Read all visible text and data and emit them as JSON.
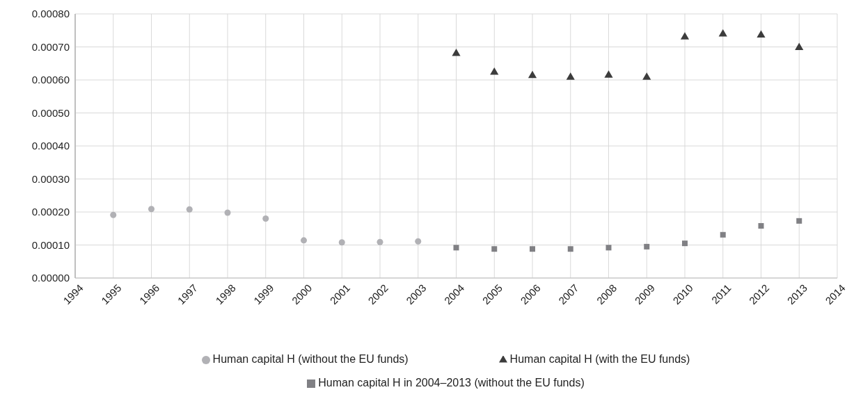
{
  "chart_data": {
    "type": "scatter",
    "series": [
      {
        "name": "Human capital H (without the EU funds)",
        "color": "#b1b1b5",
        "marker": "circle",
        "x": [
          1995,
          1996,
          1997,
          1998,
          1999,
          2000,
          2001,
          2002,
          2003
        ],
        "values": [
          0.000191,
          0.000209,
          0.000208,
          0.000198,
          0.00018,
          0.000114,
          0.000108,
          0.000109,
          0.000111
        ]
      },
      {
        "name": "Human capital H (with the EU funds)",
        "color": "#3c3c3c",
        "marker": "triangle",
        "x": [
          2004,
          2005,
          2006,
          2007,
          2008,
          2009,
          2010,
          2011,
          2012,
          2013
        ],
        "values": [
          0.00068,
          0.000623,
          0.000613,
          0.000608,
          0.000614,
          0.000608,
          0.00073,
          0.000739,
          0.000736,
          0.000698
        ]
      },
      {
        "name": "Human capital H in 2004–2013 (without the EU funds)",
        "color": "#808084",
        "marker": "square",
        "x": [
          2004,
          2005,
          2006,
          2007,
          2008,
          2009,
          2010,
          2011,
          2012,
          2013
        ],
        "values": [
          9.2e-05,
          8.8e-05,
          8.8e-05,
          8.8e-05,
          9.2e-05,
          9.5e-05,
          0.000105,
          0.000131,
          0.000158,
          0.000173
        ]
      }
    ],
    "xlim": [
      1994,
      2014
    ],
    "xticks": [
      1994,
      1995,
      1996,
      1997,
      1998,
      1999,
      2000,
      2001,
      2002,
      2003,
      2004,
      2005,
      2006,
      2007,
      2008,
      2009,
      2010,
      2011,
      2012,
      2013,
      2014
    ],
    "ylim": [
      0,
      0.0008
    ],
    "yticks": [
      {
        "value": 0,
        "label": "0.00000"
      },
      {
        "value": 0.0001,
        "label": "0.00010"
      },
      {
        "value": 0.0002,
        "label": "0.00020"
      },
      {
        "value": 0.0003,
        "label": "0.00030"
      },
      {
        "value": 0.0004,
        "label": "0.00040"
      },
      {
        "value": 0.0005,
        "label": "0.00050"
      },
      {
        "value": 0.0006,
        "label": "0.00060"
      },
      {
        "value": 0.0007,
        "label": "0.00070"
      },
      {
        "value": 0.0008,
        "label": "0.00080"
      }
    ],
    "grid": true,
    "legend": "bottom"
  }
}
